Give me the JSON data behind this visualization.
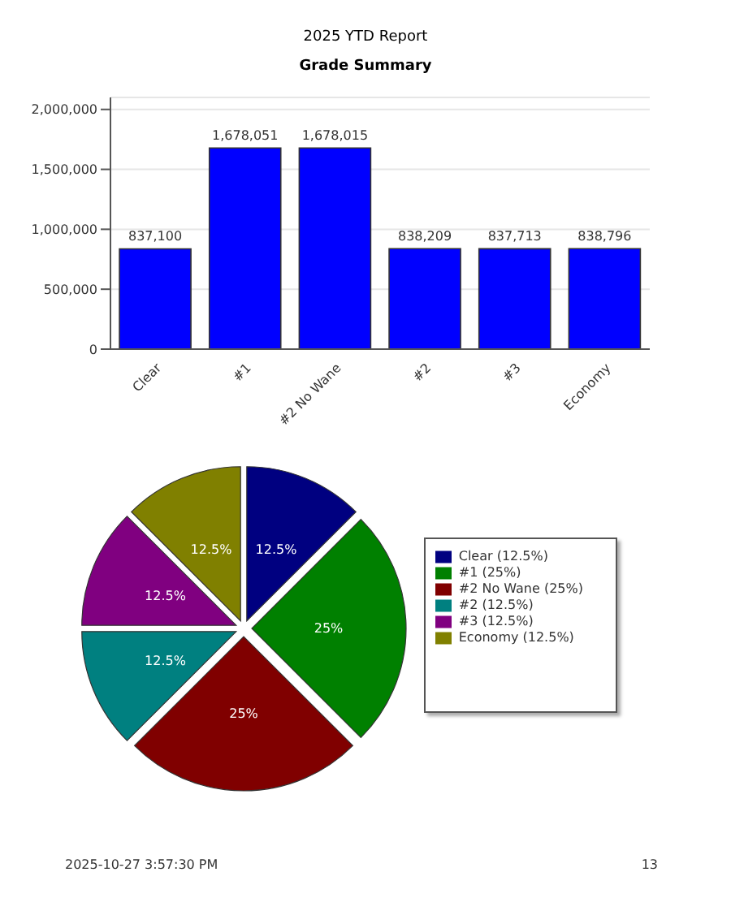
{
  "chart_data": [
    {
      "type": "bar",
      "title": "2025 YTD Report",
      "subtitle": "Grade Summary",
      "categories": [
        "Clear",
        "#1",
        "#2 No Wane",
        "#2",
        "#3",
        "Economy"
      ],
      "values": [
        837100,
        1678051,
        1678015,
        838209,
        837713,
        838796
      ],
      "value_labels": [
        "837,100",
        "1,678,051",
        "1,678,015",
        "838,209",
        "837,713",
        "838,796"
      ],
      "color": "#0000ff",
      "ylim": [
        0,
        2100000
      ],
      "yticks": [
        0,
        {
          "value": 500000,
          "label": "500,000"
        },
        {
          "value": 1000000,
          "label": "1,000,000"
        },
        {
          "value": 1500000,
          "label": "1,500,000"
        },
        {
          "value": 2000000,
          "label": "2,000,000"
        }
      ],
      "grid": "y"
    },
    {
      "type": "pie",
      "categories": [
        "Clear (12.5%)",
        "#1 (25%)",
        "#2 No Wane (25%)",
        "#2 (12.5%)",
        "#3 (12.5%)",
        "Economy (12.5%)"
      ],
      "values": [
        12.5,
        25,
        25,
        12.5,
        12.5,
        12.5
      ],
      "colors": [
        "#000080",
        "#008000",
        "#800000",
        "#008080",
        "#800080",
        "#808000"
      ],
      "value_labels": [
        "12.5%",
        "25%",
        "25%",
        "12.5%",
        "12.5%",
        "12.5%"
      ],
      "legend": "right",
      "annotations": [
        "2025-10-27 3:57:30 PM",
        "13"
      ]
    }
  ]
}
